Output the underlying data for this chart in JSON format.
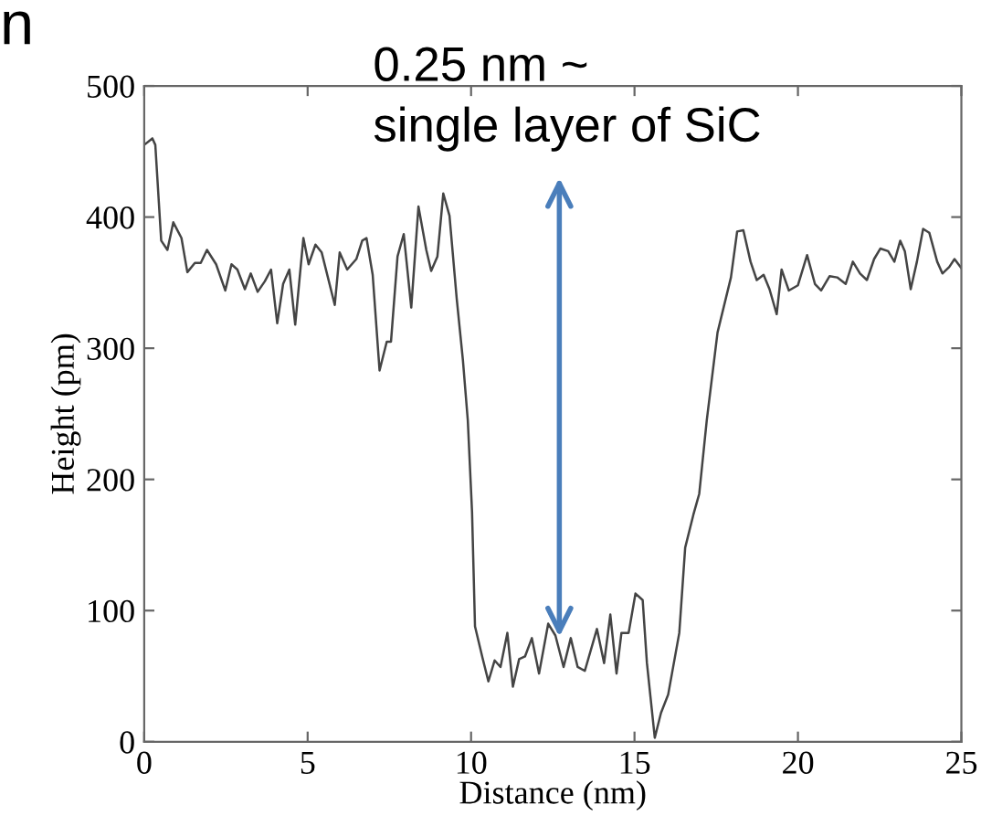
{
  "chart_data": {
    "type": "line",
    "xlabel": "Distance (nm)",
    "ylabel": "Height (pm)",
    "x": [
      0,
      0.25,
      0.34,
      0.52,
      0.71,
      0.89,
      1.14,
      1.32,
      1.55,
      1.73,
      1.92,
      2.2,
      2.48,
      2.67,
      2.85,
      3.08,
      3.26,
      3.47,
      3.69,
      3.88,
      4.07,
      4.25,
      4.44,
      4.62,
      4.87,
      5.03,
      5.24,
      5.43,
      5.83,
      5.98,
      6.21,
      6.49,
      6.67,
      6.8,
      6.99,
      7.2,
      7.42,
      7.55,
      7.75,
      7.94,
      8.17,
      8.39,
      8.63,
      8.78,
      8.97,
      9.15,
      9.34,
      9.56,
      9.75,
      9.9,
      10.03,
      10.12,
      10.35,
      10.53,
      10.72,
      10.9,
      11.11,
      11.28,
      11.47,
      11.65,
      11.86,
      12.08,
      12.36,
      12.58,
      12.83,
      13.05,
      13.26,
      13.48,
      13.85,
      14.07,
      14.26,
      14.45,
      14.6,
      14.82,
      15.03,
      15.25,
      15.38,
      15.62,
      15.81,
      16.03,
      16.37,
      16.55,
      16.8,
      16.98,
      17.21,
      17.54,
      17.95,
      18.14,
      18.33,
      18.55,
      18.74,
      18.95,
      19.13,
      19.35,
      19.5,
      19.72,
      20.0,
      20.28,
      20.52,
      20.71,
      20.97,
      21.2,
      21.46,
      21.68,
      21.9,
      22.11,
      22.33,
      22.52,
      22.76,
      22.95,
      23.13,
      23.27,
      23.45,
      23.64,
      23.83,
      24.02,
      24.26,
      24.42,
      24.63,
      24.79,
      25.0
    ],
    "series": [
      {
        "color": "#444444",
        "values": [
          455,
          460,
          455,
          382,
          375,
          396,
          384,
          358,
          365,
          365,
          375,
          364,
          344,
          364,
          360,
          345,
          357,
          343,
          351,
          360,
          319,
          349,
          360,
          318,
          384,
          364,
          379,
          373,
          333,
          373,
          360,
          368,
          382,
          384,
          356,
          283,
          305,
          305,
          370,
          387,
          331,
          408,
          375,
          359,
          370,
          418,
          401,
          338,
          291,
          245,
          175,
          88,
          64,
          46,
          62,
          57,
          83,
          42,
          63,
          65,
          79,
          52,
          90,
          81,
          57,
          79,
          57,
          54,
          86,
          60,
          97,
          52,
          83,
          83,
          113,
          108,
          60,
          3,
          22,
          36,
          83,
          148,
          173,
          189,
          245,
          312,
          354,
          389,
          390,
          366,
          352,
          356,
          345,
          326,
          360,
          344,
          348,
          371,
          349,
          344,
          355,
          354,
          349,
          366,
          357,
          352,
          368,
          376,
          374,
          366,
          382,
          374,
          345,
          366,
          391,
          388,
          366,
          357,
          362,
          368,
          361
        ]
      }
    ],
    "xlim": [
      0,
      25
    ],
    "ylim": [
      0,
      500
    ],
    "xticks": [
      0,
      5,
      10,
      15,
      20,
      25
    ],
    "yticks": [
      0,
      100,
      200,
      300,
      400,
      500
    ],
    "grid": false,
    "annotations": [
      "n",
      {
        "text": "0.25 nm ~\nsingle layer of SiC",
        "x": 12.7,
        "y": 80
      }
    ]
  }
}
